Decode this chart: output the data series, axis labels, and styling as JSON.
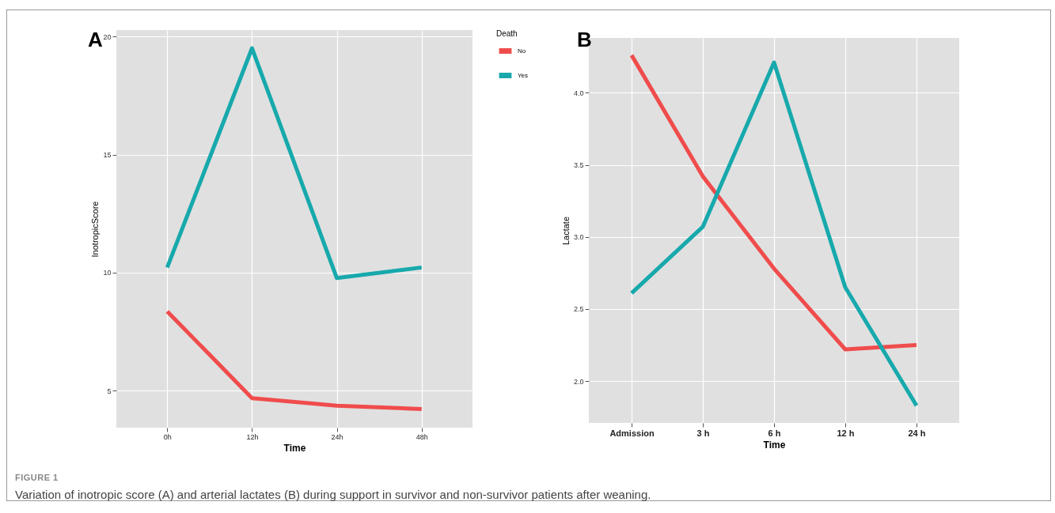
{
  "chart_data": [
    {
      "type": "line",
      "xlabel": "Time",
      "ylabel": "InotropicScore",
      "legend_title": "Death",
      "legend": "right",
      "grid": true,
      "categories": [
        "0h",
        "12h",
        "24h",
        "48h"
      ],
      "ylim": [
        3.44,
        20.27
      ],
      "yticks": [
        5,
        10,
        15,
        20
      ],
      "series": [
        {
          "name": "No",
          "color": "#f04c4c",
          "values": [
            8.36,
            4.69,
            4.37,
            4.23
          ]
        },
        {
          "name": "Yes",
          "color": "#17a9ac",
          "values": [
            10.22,
            19.5,
            9.77,
            10.22
          ]
        }
      ],
      "annotations": [
        "A",
        "FIGURE 1",
        "Variation of inotropic score (A) and arterial lactates (B) during support in survivor and non-survivor patients after weaning."
      ]
    },
    {
      "type": "line",
      "xlabel": "Time",
      "ylabel": "Lactate",
      "grid": true,
      "categories": [
        "Admission",
        "3 h",
        "6 h",
        "12 h",
        "24 h"
      ],
      "ylim": [
        1.71,
        4.38
      ],
      "yticks": [
        {
          "value": 2,
          "label": "2.0"
        },
        {
          "value": 2.5,
          "label": "2.5"
        },
        {
          "value": 3,
          "label": "3.0"
        },
        {
          "value": 3.5,
          "label": "3.5"
        },
        {
          "value": 4,
          "label": "4.0"
        }
      ],
      "series": [
        {
          "color": "#f04c4c",
          "values": [
            4.26,
            3.42,
            2.78,
            2.22,
            2.25
          ]
        },
        {
          "color": "#17a9ac",
          "values": [
            2.61,
            3.07,
            4.21,
            2.65,
            1.83
          ]
        }
      ],
      "annotations": [
        "B"
      ]
    }
  ]
}
